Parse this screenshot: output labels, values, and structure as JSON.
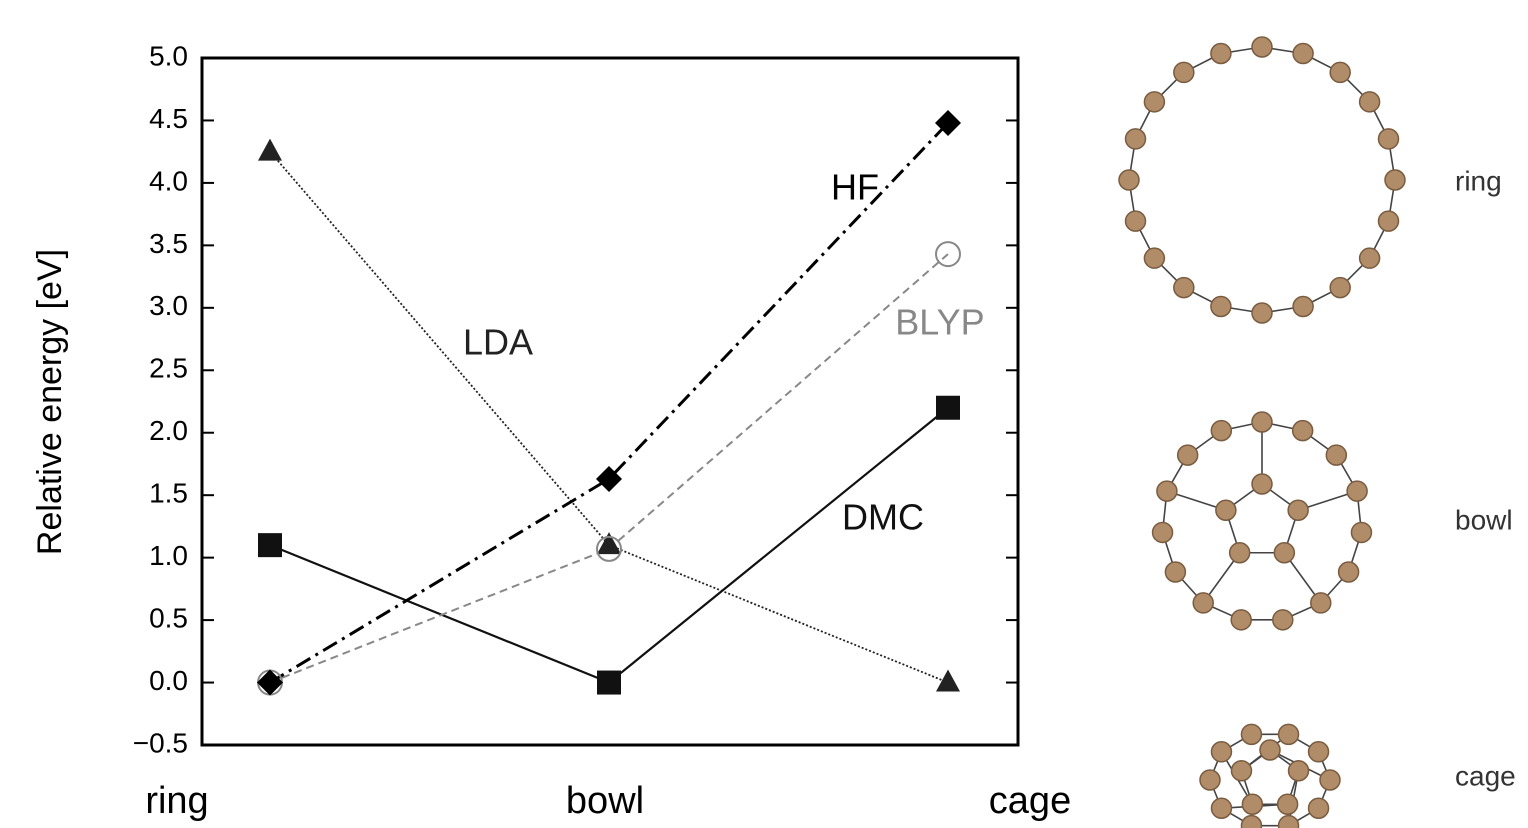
{
  "chart_data": {
    "type": "line",
    "y_label": "Relative energy [eV]",
    "categories": [
      "ring",
      "bowl",
      "cage"
    ],
    "ylim": [
      -0.5,
      5.0
    ],
    "yticks": [
      {
        "value": -0.5,
        "label": "−0.5"
      },
      {
        "value": 0,
        "label": "0.0"
      },
      {
        "value": 0.5,
        "label": "0.5"
      },
      {
        "value": 1,
        "label": "1.0"
      },
      {
        "value": 1.5,
        "label": "1.5"
      },
      {
        "value": 2,
        "label": "2.0"
      },
      {
        "value": 2.5,
        "label": "2.5"
      },
      {
        "value": 3,
        "label": "3.0"
      },
      {
        "value": 3.5,
        "label": "3.5"
      },
      {
        "value": 4,
        "label": "4.0"
      },
      {
        "value": 4.5,
        "label": "4.5"
      },
      {
        "value": 5,
        "label": "5.0"
      }
    ],
    "grid": false,
    "series": [
      {
        "name": "HF",
        "color": "#000000",
        "marker": "diamond",
        "line_style": "dashdot",
        "values": [
          0,
          1.63,
          4.48
        ]
      },
      {
        "name": "BLYP",
        "color": "#888888",
        "marker": "open-circle",
        "line_style": "dashed",
        "values": [
          0,
          1.07,
          3.43
        ]
      },
      {
        "name": "LDA",
        "color": "#222222",
        "marker": "triangle",
        "line_style": "dotted",
        "values": [
          4.25,
          1.1,
          0
        ]
      },
      {
        "name": "DMC",
        "color": "#111111",
        "marker": "square",
        "line_style": "solid",
        "values": [
          1.1,
          0,
          2.2
        ]
      }
    ]
  }
}
